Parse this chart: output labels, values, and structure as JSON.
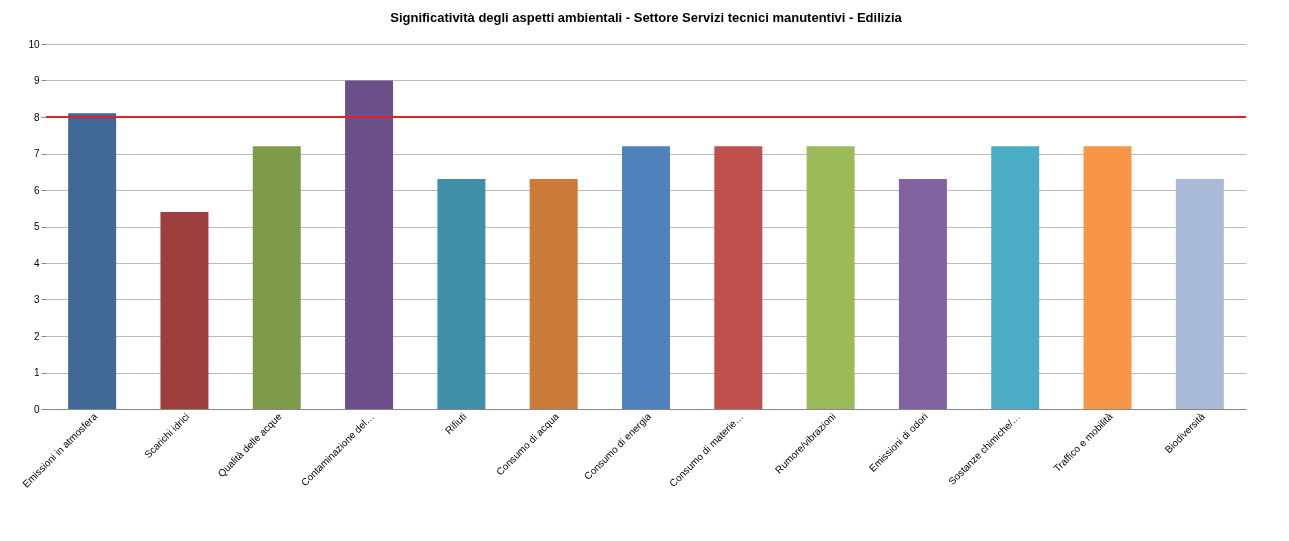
{
  "chart_data": {
    "type": "bar",
    "title": "Significatività degli aspetti ambientali - Settore Servizi tecnici manutentivi - Edilizia",
    "categories": [
      "Emissioni in atmosfera",
      "Scarichi idrici",
      "Qualità delle acque",
      "Contaminazione del…",
      "Rifiuti",
      "Consumo di acqua",
      "Consumo di energia",
      "Consumo di materie…",
      "Rumore/vibrazioni",
      "Emissioni di odori",
      "Sostanze chimiche/…",
      "Traffico e mobilità",
      "Biodiversità"
    ],
    "values": [
      8.1,
      5.4,
      7.2,
      9.0,
      6.3,
      6.3,
      7.2,
      7.2,
      7.2,
      6.3,
      7.2,
      7.2,
      6.3
    ],
    "colors": [
      "#426898",
      "#9e3f3d",
      "#7f9c4b",
      "#6b5089",
      "#3f8fa6",
      "#cc7b38",
      "#4f81bd",
      "#c0504d",
      "#9bbb59",
      "#8064a2",
      "#4bacc6",
      "#f79646",
      "#a9b9d8"
    ],
    "ylim": [
      0,
      10
    ],
    "yticks": [
      0,
      1,
      2,
      3,
      4,
      5,
      6,
      7,
      8,
      9,
      10
    ],
    "grid": "y",
    "legend": false,
    "ref_lines": [
      {
        "axis": "y",
        "value": 8,
        "color": "#e0202a"
      }
    ]
  }
}
